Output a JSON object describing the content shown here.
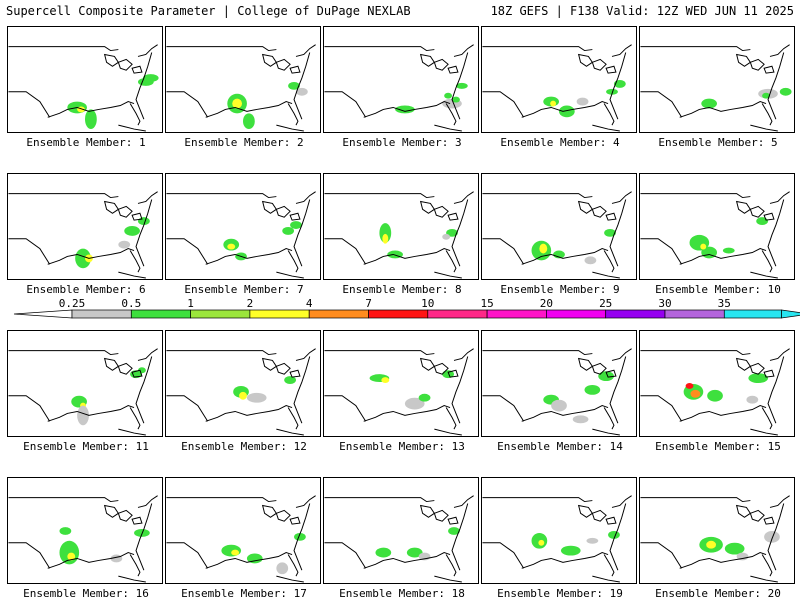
{
  "header": {
    "left": "Supercell Composite Parameter | College of DuPage NEXLAB",
    "right": "18Z GEFS | F138 Valid: 12Z WED JUN 11 2025"
  },
  "colorbar": {
    "ticks": [
      "0.25",
      "0.5",
      "1",
      "2",
      "4",
      "7",
      "10",
      "15",
      "20",
      "25",
      "30",
      "35"
    ],
    "colors": [
      "#c8c8c8",
      "#3ee03e",
      "#9be63c",
      "#ffff28",
      "#ff8c1e",
      "#ff1414",
      "#ff2888",
      "#ff14c8",
      "#f000f0",
      "#9600f0",
      "#b464dc",
      "#28e6f0"
    ]
  },
  "members": [
    {
      "label": "Ensemble Member: 1"
    },
    {
      "label": "Ensemble Member: 2"
    },
    {
      "label": "Ensemble Member: 3"
    },
    {
      "label": "Ensemble Member: 4"
    },
    {
      "label": "Ensemble Member: 5"
    },
    {
      "label": "Ensemble Member: 6"
    },
    {
      "label": "Ensemble Member: 7"
    },
    {
      "label": "Ensemble Member: 8"
    },
    {
      "label": "Ensemble Member: 9"
    },
    {
      "label": "Ensemble Member: 10"
    },
    {
      "label": "Ensemble Member: 11"
    },
    {
      "label": "Ensemble Member: 12"
    },
    {
      "label": "Ensemble Member: 13"
    },
    {
      "label": "Ensemble Member: 14"
    },
    {
      "label": "Ensemble Member: 15"
    },
    {
      "label": "Ensemble Member: 16"
    },
    {
      "label": "Ensemble Member: 17"
    },
    {
      "label": "Ensemble Member: 18"
    },
    {
      "label": "Ensemble Member: 19"
    },
    {
      "label": "Ensemble Member: 20"
    }
  ]
}
